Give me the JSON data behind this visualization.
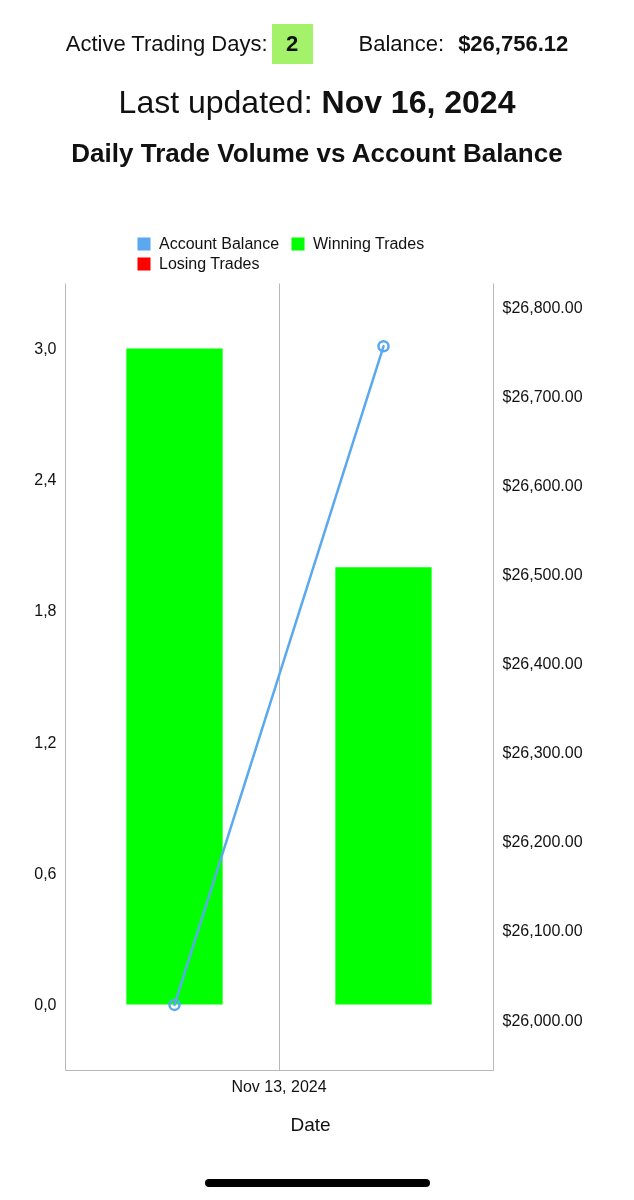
{
  "chart_data": {
    "type": "bar",
    "title": "Daily Trade Volume vs Account Balance",
    "annotations": [
      "Active Trading Days: 2",
      "Balance: $26,756.12",
      "Last updated: Nov 16, 2024",
      "Nov 13, 2024"
    ],
    "xlabel": "Date",
    "categories": [
      null,
      null
    ],
    "series": [
      {
        "name": "Account Balance",
        "type": "line",
        "axis": "y2",
        "color": "#5aa9ee",
        "values": [
          26017,
          26756
        ]
      },
      {
        "name": "Winning Trades",
        "color": "#00ff00",
        "values": [
          3,
          2
        ]
      },
      {
        "name": "Losing Trades",
        "color": "#ff0000",
        "values": [
          0,
          0
        ]
      }
    ],
    "stacked": true,
    "marker": "circle",
    "ylim": [
      -0.3,
      3.3
    ],
    "yticks": [
      {
        "value": 0,
        "label": "0,0"
      },
      {
        "value": 0.6,
        "label": "0,6"
      },
      {
        "value": 1.2,
        "label": "1,2"
      },
      {
        "value": 1.8,
        "label": "1,8"
      },
      {
        "value": 2.4,
        "label": "2,4"
      },
      {
        "value": 3,
        "label": "3,0"
      }
    ],
    "y2lim": [
      25944,
      26827
    ],
    "y2ticks": [
      {
        "value": 26000,
        "label": "$26,000.00"
      },
      {
        "value": 26100,
        "label": "$26,100.00"
      },
      {
        "value": 26200,
        "label": "$26,200.00"
      },
      {
        "value": 26300,
        "label": "$26,300.00"
      },
      {
        "value": 26400,
        "label": "$26,400.00"
      },
      {
        "value": 26500,
        "label": "$26,500.00"
      },
      {
        "value": 26600,
        "label": "$26,600.00"
      },
      {
        "value": 26700,
        "label": "$26,700.00"
      },
      {
        "value": 26800,
        "label": "$26,800.00"
      }
    ],
    "grid": "x",
    "legend": "top"
  }
}
